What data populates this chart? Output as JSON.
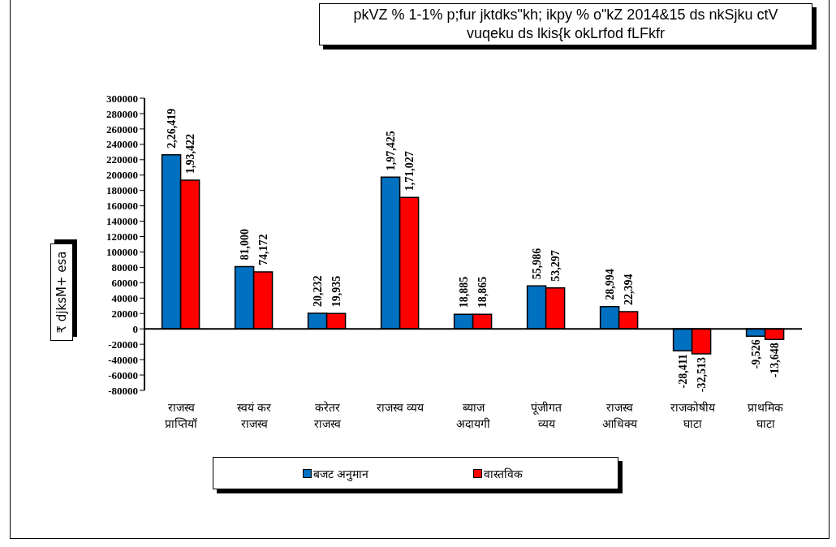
{
  "chart_data": {
    "type": "bar",
    "title": "pkVZ % 1-1% p;fur jktdks\"kh; ikpy % o\"kZ 2014&15 ds nkSjku ctV\nvuqeku ds lkis{k okLrfod fLFkfr",
    "ylabel": "₹ djksM+ esa",
    "categories": [
      "राजस्व\nप्राप्तियॉ",
      "स्वयं कर\nराजस्व",
      "करेतर\nराजस्व",
      "राजस्व व्यय",
      "ब्याज\nअदायगी",
      "पूंजीगत\nव्यय",
      "राजस्व\nआधिक्य",
      "राजकोषीय\nघाटा",
      "प्राथमिक\nघाटा"
    ],
    "series": [
      {
        "name": "बजट अनुमान",
        "color": "#0070c0",
        "values": [
          226419,
          81000,
          20232,
          197425,
          18885,
          55986,
          28994,
          -28411,
          -9526
        ],
        "value_labels": [
          "2,26,419",
          "81,000",
          "20,232",
          "1,97,425",
          "18,885",
          "55,986",
          "28,994",
          "-28,411",
          "-9,526"
        ]
      },
      {
        "name": "वास्तविक",
        "color": "#ff0000",
        "values": [
          193422,
          74172,
          19935,
          171027,
          18865,
          53297,
          22394,
          -32513,
          -13648
        ],
        "value_labels": [
          "1,93,422",
          "74,172",
          "19,935",
          "1,71,027",
          "18,865",
          "53,297",
          "22,394",
          "-32,513",
          "-13,648"
        ]
      }
    ],
    "ylim": [
      -80000,
      300000
    ],
    "yticks": [
      -80000,
      -60000,
      -40000,
      -20000,
      0,
      20000,
      40000,
      60000,
      80000,
      100000,
      120000,
      140000,
      160000,
      180000,
      200000,
      220000,
      240000,
      260000,
      280000,
      300000
    ],
    "legend": "bottom"
  }
}
